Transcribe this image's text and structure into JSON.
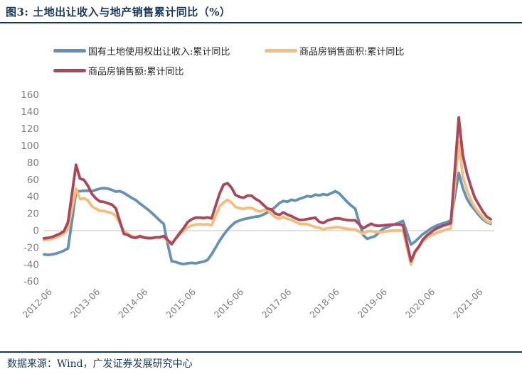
{
  "title": "图3:  土地出让收入与地产销售累计同比（%）",
  "source": "数据来源：Wind，广发证券发展研究中心",
  "colors": {
    "accent_navy": "#17375e",
    "axis_label_gray": "#7f7f7f",
    "zero_gridline": "#d6d6d6",
    "background": "#ffffff",
    "legend_text": "#262626"
  },
  "chart_data": {
    "type": "line",
    "title": "土地出让收入与地产销售累计同比（%）",
    "xlabel": "",
    "ylabel": "",
    "x_start": "2012-06",
    "x_end": "2021-10",
    "x_frequency": "monthly",
    "x_ticks": [
      "2012-06",
      "2013-06",
      "2014-06",
      "2015-06",
      "2016-06",
      "2017-06",
      "2018-06",
      "2019-06",
      "2020-06",
      "2021-06"
    ],
    "x_tick_interval_months": 12,
    "y_ticks": [
      160,
      140,
      120,
      100,
      80,
      60,
      40,
      20,
      0,
      -20,
      -40,
      -60
    ],
    "ylim": [
      -60,
      160
    ],
    "grid": "zero-line-only",
    "legend_position": "top-left",
    "series": [
      {
        "name": "国有土地使用权出让收入:累计同比",
        "color": "#6691b4",
        "values": [
          -28,
          -28.5,
          -28,
          -27,
          -25.5,
          -23.5,
          -21,
          12,
          46,
          46.5,
          47,
          47,
          46.5,
          48,
          49.5,
          50,
          49.5,
          48,
          46,
          46.5,
          44.5,
          41.5,
          38.5,
          36,
          32,
          28.5,
          25,
          21,
          16.5,
          12,
          8,
          -16,
          -36,
          -37,
          -38.5,
          -39.5,
          -38.5,
          -38,
          -38.5,
          -37.5,
          -36.5,
          -34.5,
          -28,
          -20,
          -12,
          -5,
          1,
          6,
          10,
          12,
          13.5,
          14.5,
          15.5,
          16.5,
          17,
          19,
          21.5,
          24,
          28,
          32.5,
          35,
          34,
          36.5,
          35.5,
          37.5,
          39,
          40.7,
          40,
          42.5,
          41.5,
          43,
          42,
          44,
          46.5,
          44,
          39,
          34,
          29.5,
          26,
          10,
          -5.3,
          -9.5,
          -8,
          -6.5,
          -2,
          2,
          4,
          6,
          7.5,
          9.5,
          11.4,
          -2.5,
          -16.4,
          -13,
          -8.5,
          -4,
          -1,
          2.5,
          5,
          7,
          8.5,
          10,
          12,
          40,
          68,
          50,
          38,
          30,
          24.5,
          18.5,
          13.5,
          10,
          8
        ]
      },
      {
        "name": "商品房销售面积:累计同比",
        "color": "#f2bd7d",
        "values": [
          -11,
          -10.5,
          -9.5,
          -8,
          -6,
          -3.5,
          1.8,
          26,
          49.5,
          37.1,
          38.1,
          35.6,
          28.7,
          25.8,
          23.4,
          23.3,
          21.8,
          20.8,
          17.3,
          8.5,
          -0.1,
          -3.8,
          -6.9,
          -7.8,
          -6,
          -7.6,
          -8.3,
          -8.6,
          -7.8,
          -8.2,
          -7.6,
          -12,
          -16.3,
          -9.2,
          -4.8,
          -0.2,
          3.9,
          6.1,
          7.2,
          7.5,
          7.2,
          7.4,
          6.5,
          17.5,
          28.2,
          33.1,
          36.5,
          33.2,
          27.9,
          26.4,
          25.5,
          26.9,
          26.8,
          24.3,
          22.5,
          23.8,
          25.1,
          19.5,
          15.7,
          14.3,
          16.1,
          14,
          12.7,
          10.3,
          8.2,
          7.9,
          7.7,
          5.9,
          4.1,
          3.6,
          1.3,
          2.9,
          3.3,
          4.2,
          4,
          2.9,
          2.2,
          1.4,
          1.3,
          -1.2,
          -3.6,
          -0.9,
          -0.3,
          -1.6,
          -1.8,
          -1.3,
          -0.6,
          -0.1,
          0.1,
          0.2,
          -0.1,
          -20,
          -39.9,
          -26.3,
          -19.3,
          -12.3,
          -8.4,
          -5.8,
          -3.3,
          -1.8,
          0,
          1.3,
          2.6,
          54,
          104.9,
          63.8,
          48.1,
          36.3,
          27.7,
          21.5,
          15.9,
          11.3,
          9
        ]
      },
      {
        "name": "商品房销售额:累计同比",
        "color": "#a9485a",
        "values": [
          -9,
          -8.5,
          -7.5,
          -5.5,
          -3.5,
          -0.5,
          10,
          44,
          77.6,
          61.3,
          59.8,
          52.8,
          43.2,
          37.8,
          34.4,
          33.9,
          32.3,
          30.7,
          26.3,
          11,
          -3.7,
          -5.2,
          -7.8,
          -8.5,
          -6.7,
          -8.2,
          -8.9,
          -8.9,
          -7.9,
          -7.8,
          -6.3,
          -11,
          -15.8,
          -9.3,
          -3.1,
          3.1,
          10,
          13.4,
          15.3,
          15.3,
          14.9,
          15.6,
          14.4,
          29,
          43.6,
          54.1,
          55.9,
          50.7,
          42.1,
          39.8,
          38.7,
          41.3,
          41.2,
          37.5,
          34.8,
          30.4,
          26,
          25.1,
          20.1,
          18.6,
          21.5,
          18.9,
          17.2,
          14.6,
          12.6,
          12.7,
          13.7,
          14.5,
          15.3,
          10.4,
          9,
          11.8,
          13.2,
          14.4,
          14.5,
          13.3,
          12.5,
          12.1,
          12.2,
          7.5,
          2.8,
          5.6,
          8.1,
          6.1,
          5.6,
          6.2,
          6.7,
          7.1,
          7.3,
          7.3,
          6.5,
          -14.7,
          -35.9,
          -24.7,
          -18.6,
          -10.6,
          -5.4,
          -2.1,
          1.6,
          3.8,
          5.8,
          7.2,
          8.7,
          71,
          133.4,
          88.5,
          68.2,
          52.4,
          38.9,
          30.7,
          22.8,
          16.6,
          13.5
        ]
      }
    ]
  }
}
